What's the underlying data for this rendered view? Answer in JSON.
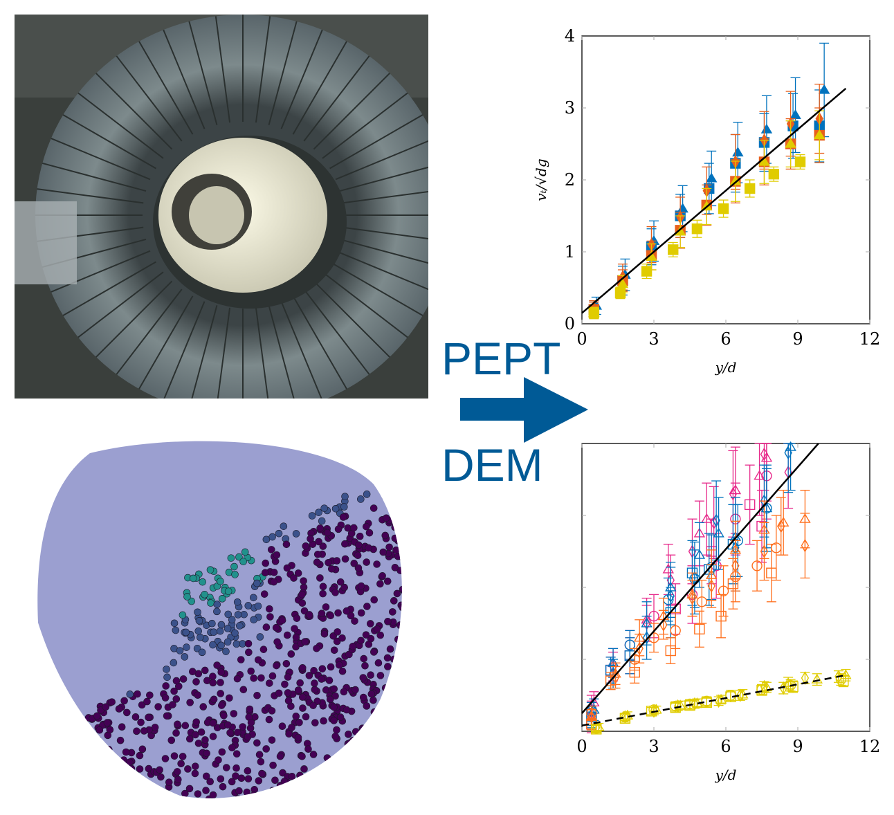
{
  "labels": {
    "top": "PEPT",
    "bottom": "DEM",
    "arrow_color": "#005a96"
  },
  "images": {
    "top": "pept-scanner-photo",
    "bottom": "dem-particle-drum-render"
  },
  "chart_data": [
    {
      "type": "scatter",
      "xlabel": "y/d",
      "ylabel": "vₜ/√dg",
      "xlim": [
        0,
        12
      ],
      "ylim": [
        0,
        4
      ],
      "xticks": [
        "0",
        "3",
        "6",
        "9",
        "12"
      ],
      "yticks": [
        "0",
        "1",
        "2",
        "3",
        "4"
      ],
      "grid": false,
      "fit_lines": [
        {
          "style": "solid",
          "color": "#000000",
          "x": [
            0,
            11
          ],
          "y": [
            0.15,
            3.27
          ]
        }
      ],
      "series": [
        {
          "marker": "square",
          "filled": true,
          "color": "#0072bd",
          "x": [
            0.5,
            1.7,
            2.9,
            4.1,
            5.3,
            6.4,
            7.6,
            8.8,
            9.9
          ],
          "y": [
            0.2,
            0.6,
            1.07,
            1.5,
            1.88,
            2.23,
            2.52,
            2.75,
            2.75
          ],
          "err": [
            0.12,
            0.2,
            0.25,
            0.3,
            0.35,
            0.4,
            0.4,
            0.45,
            0.5
          ]
        },
        {
          "marker": "triangle",
          "filled": true,
          "color": "#0072bd",
          "x": [
            0.6,
            1.8,
            3.0,
            4.2,
            5.4,
            6.5,
            7.7,
            8.9,
            10.1
          ],
          "y": [
            0.25,
            0.68,
            1.15,
            1.6,
            2.02,
            2.38,
            2.7,
            2.9,
            3.25
          ],
          "err": [
            0.12,
            0.22,
            0.28,
            0.32,
            0.38,
            0.42,
            0.47,
            0.52,
            0.65
          ]
        },
        {
          "marker": "diamond",
          "filled": true,
          "color": "#e8601c",
          "x": [
            0.5,
            1.7,
            2.9,
            4.1,
            5.2,
            6.4,
            7.6,
            8.7,
            9.9
          ],
          "y": [
            0.22,
            0.65,
            1.1,
            1.48,
            1.85,
            2.25,
            2.55,
            2.78,
            2.85
          ],
          "err": [
            0.1,
            0.18,
            0.25,
            0.28,
            0.33,
            0.38,
            0.4,
            0.45,
            0.48
          ]
        },
        {
          "marker": "square",
          "filled": true,
          "color": "#e8601c",
          "x": [
            0.5,
            1.7,
            2.9,
            4.1,
            5.2,
            6.4,
            7.6,
            8.7,
            9.9
          ],
          "y": [
            0.2,
            0.6,
            0.95,
            1.3,
            1.65,
            1.98,
            2.25,
            2.5,
            2.62
          ],
          "err": [
            0.1,
            0.15,
            0.2,
            0.25,
            0.28,
            0.3,
            0.32,
            0.35,
            0.38
          ]
        },
        {
          "marker": "triangle",
          "filled": true,
          "color": "#e0cc00",
          "x": [
            0.5,
            1.7,
            2.9,
            4.1,
            5.2,
            6.4,
            7.6,
            8.7,
            9.9
          ],
          "y": [
            0.15,
            0.55,
            0.93,
            1.28,
            1.63,
            1.98,
            2.25,
            2.5,
            2.62
          ],
          "err": [
            0.08,
            0.12,
            0.18,
            0.22,
            0.25,
            0.28,
            0.3,
            0.32,
            0.34
          ]
        },
        {
          "marker": "square",
          "filled": true,
          "color": "#e0cc00",
          "x": [
            0.5,
            1.6,
            2.7,
            3.8,
            4.8,
            5.9,
            7.0,
            8.0,
            9.1
          ],
          "y": [
            0.15,
            0.43,
            0.73,
            1.03,
            1.32,
            1.6,
            1.88,
            2.08,
            2.25
          ],
          "err": [
            0.07,
            0.08,
            0.1,
            0.1,
            0.12,
            0.12,
            0.12,
            0.1,
            0.1
          ]
        }
      ]
    },
    {
      "type": "scatter",
      "xlabel": "y/d",
      "ylabel": "",
      "xlim": [
        0,
        12
      ],
      "ylim": [
        0,
        4
      ],
      "xticks": [
        "0",
        "3",
        "6",
        "9",
        "12"
      ],
      "yticks": [],
      "grid": false,
      "fit_lines": [
        {
          "style": "solid",
          "color": "#000000",
          "x": [
            0,
            9.86
          ],
          "y": [
            0.25,
            4.0
          ]
        },
        {
          "style": "dashed",
          "color": "#000000",
          "x": [
            0,
            11
          ],
          "y": [
            0.08,
            0.78
          ]
        }
      ],
      "series": [
        {
          "marker": "diamond",
          "filled": false,
          "color": "#e7298a",
          "x": [
            0.4,
            1.3,
            2.7,
            3.7,
            4.6,
            5.5,
            6.3,
            7.6,
            8.6
          ],
          "y": [
            0.35,
            0.9,
            1.5,
            2.1,
            2.5,
            2.9,
            3.3,
            3.85,
            3.6
          ],
          "err": [
            0.15,
            0.2,
            0.25,
            0.35,
            0.45,
            0.5,
            0.6,
            0.5,
            0.5
          ]
        },
        {
          "marker": "triangle",
          "filled": false,
          "color": "#e7298a",
          "x": [
            0.5,
            1.3,
            2.7,
            3.6,
            4.9,
            5.2,
            6.4,
            7.4,
            7.7
          ],
          "y": [
            0.4,
            0.95,
            1.55,
            2.25,
            2.75,
            2.95,
            3.35,
            3.55,
            3.8
          ],
          "err": [
            0.15,
            0.2,
            0.3,
            0.35,
            0.45,
            0.5,
            0.6,
            0.55,
            0.6
          ]
        },
        {
          "marker": "circle",
          "filled": false,
          "color": "#e7298a",
          "x": [
            0.4,
            2.0,
            3.0,
            4.6,
            5.6,
            6.4,
            7.7
          ],
          "y": [
            0.3,
            1.2,
            1.6,
            1.9,
            2.3,
            2.95,
            3.55
          ],
          "err": [
            0.12,
            0.2,
            0.3,
            0.4,
            0.45,
            0.5,
            0.6
          ]
        },
        {
          "marker": "square",
          "filled": false,
          "color": "#e7298a",
          "x": [
            0.4,
            1.2,
            2.0,
            3.9,
            5.4,
            7.0,
            7.5
          ],
          "y": [
            0.1,
            0.85,
            1.05,
            1.7,
            2.5,
            3.15,
            2.85
          ],
          "err": [
            0.12,
            0.18,
            0.25,
            0.35,
            0.45,
            0.55,
            0.5
          ]
        },
        {
          "marker": "diamond",
          "filled": false,
          "color": "#0072bd",
          "x": [
            0.4,
            1.3,
            2.7,
            3.7,
            4.7,
            5.6,
            6.4,
            7.6,
            8.6
          ],
          "y": [
            0.2,
            0.8,
            1.3,
            1.88,
            2.13,
            2.93,
            2.55,
            3.2,
            3.87
          ],
          "err": [
            0.15,
            0.2,
            0.3,
            0.4,
            0.5,
            0.55,
            0.6,
            0.5,
            0.55
          ]
        },
        {
          "marker": "triangle",
          "filled": false,
          "color": "#0072bd",
          "x": [
            0.5,
            1.3,
            2.7,
            3.7,
            4.9,
            5.7,
            6.4,
            7.7,
            8.7
          ],
          "y": [
            0.3,
            0.95,
            1.5,
            2.0,
            2.45,
            2.75,
            2.7,
            3.1,
            3.95
          ],
          "err": [
            0.15,
            0.2,
            0.3,
            0.35,
            0.45,
            0.5,
            0.55,
            0.6,
            0.6
          ]
        },
        {
          "marker": "circle",
          "filled": false,
          "color": "#0072bd",
          "x": [
            0.4,
            2.0,
            3.6,
            4.7,
            5.4,
            6.5,
            7.7
          ],
          "y": [
            0.28,
            1.2,
            1.83,
            2.12,
            2.28,
            2.65,
            3.1
          ],
          "err": [
            0.12,
            0.2,
            0.3,
            0.4,
            0.45,
            0.5,
            0.55
          ]
        },
        {
          "marker": "square",
          "filled": false,
          "color": "#0072bd",
          "x": [
            0.4,
            1.2,
            2.0,
            3.7,
            4.6,
            5.3,
            6.3
          ],
          "y": [
            0.2,
            0.85,
            1.05,
            1.65,
            2.2,
            2.25,
            2.6
          ],
          "err": [
            0.12,
            0.18,
            0.25,
            0.35,
            0.45,
            0.5,
            0.55
          ]
        },
        {
          "marker": "diamond",
          "filled": false,
          "color": "#ff6f1c",
          "x": [
            0.4,
            1.4,
            2.4,
            3.4,
            4.6,
            5.4,
            6.4,
            7.6,
            8.3,
            9.3
          ],
          "y": [
            0.2,
            0.75,
            1.15,
            1.48,
            1.85,
            2.02,
            2.3,
            2.5,
            2.85,
            2.58
          ],
          "err": [
            0.1,
            0.15,
            0.2,
            0.2,
            0.25,
            0.3,
            0.35,
            0.4,
            0.4,
            0.45
          ]
        },
        {
          "marker": "triangle",
          "filled": false,
          "color": "#ff6f1c",
          "x": [
            0.4,
            1.4,
            2.4,
            3.4,
            4.6,
            5.4,
            6.4,
            7.6,
            8.4,
            9.3
          ],
          "y": [
            0.2,
            0.8,
            1.3,
            1.6,
            1.9,
            2.17,
            2.52,
            2.8,
            2.9,
            2.95
          ],
          "err": [
            0.1,
            0.15,
            0.25,
            0.25,
            0.3,
            0.35,
            0.4,
            0.4,
            0.45,
            0.4
          ]
        },
        {
          "marker": "circle",
          "filled": false,
          "color": "#ff6f1c",
          "x": [
            0.4,
            2.2,
            3.0,
            3.9,
            5.0,
            5.9,
            6.4,
            7.3,
            8.1
          ],
          "y": [
            0.25,
            1.0,
            1.3,
            1.4,
            1.8,
            1.95,
            2.15,
            2.3,
            2.55
          ],
          "err": [
            0.1,
            0.15,
            0.2,
            0.25,
            0.3,
            0.35,
            0.35,
            0.35,
            0.45
          ]
        },
        {
          "marker": "square",
          "filled": false,
          "color": "#ff6f1c",
          "x": [
            0.4,
            1.2,
            2.2,
            3.7,
            4.9,
            5.8,
            6.3,
            7.9
          ],
          "y": [
            0.1,
            0.7,
            0.82,
            1.12,
            1.42,
            1.6,
            2.05,
            2.2
          ],
          "err": [
            0.08,
            0.12,
            0.15,
            0.18,
            0.25,
            0.3,
            0.35,
            0.4
          ]
        },
        {
          "marker": "diamond",
          "filled": false,
          "color": "#e0cc00",
          "x": [
            0.6,
            1.8,
            3.0,
            4.0,
            4.7,
            5.7,
            6.6,
            7.6,
            8.4,
            9.3,
            10.7
          ],
          "y": [
            0.05,
            0.2,
            0.28,
            0.35,
            0.38,
            0.42,
            0.5,
            0.62,
            0.6,
            0.74,
            0.76
          ],
          "err": [
            0.05,
            0.05,
            0.05,
            0.06,
            0.06,
            0.06,
            0.07,
            0.07,
            0.08,
            0.08,
            0.08
          ]
        },
        {
          "marker": "triangle",
          "filled": false,
          "color": "#e0cc00",
          "x": [
            0.7,
            1.9,
            3.1,
            4.1,
            4.8,
            5.8,
            6.7,
            7.7,
            8.6,
            9.8,
            11.0
          ],
          "y": [
            0.06,
            0.22,
            0.3,
            0.36,
            0.39,
            0.44,
            0.51,
            0.61,
            0.67,
            0.72,
            0.78
          ],
          "err": [
            0.05,
            0.05,
            0.05,
            0.06,
            0.06,
            0.06,
            0.07,
            0.07,
            0.08,
            0.08,
            0.08
          ]
        },
        {
          "marker": "circle",
          "filled": false,
          "color": "#e0cc00",
          "x": [
            0.6,
            1.8,
            3.0,
            3.9,
            4.5,
            5.2,
            6.2,
            7.5,
            8.7,
            10.8
          ],
          "y": [
            0.04,
            0.2,
            0.3,
            0.35,
            0.38,
            0.42,
            0.5,
            0.58,
            0.64,
            0.72
          ],
          "err": [
            0.05,
            0.05,
            0.05,
            0.06,
            0.06,
            0.06,
            0.07,
            0.07,
            0.08,
            0.08
          ]
        },
        {
          "marker": "square",
          "filled": false,
          "color": "#e0cc00",
          "x": [
            0.6,
            1.8,
            2.9,
            3.9,
            4.5,
            5.2,
            6.2,
            7.5,
            8.8,
            10.9
          ],
          "y": [
            0.03,
            0.18,
            0.28,
            0.33,
            0.36,
            0.4,
            0.48,
            0.57,
            0.62,
            0.7
          ],
          "err": [
            0.05,
            0.05,
            0.05,
            0.06,
            0.06,
            0.06,
            0.07,
            0.07,
            0.08,
            0.08
          ]
        }
      ]
    }
  ]
}
